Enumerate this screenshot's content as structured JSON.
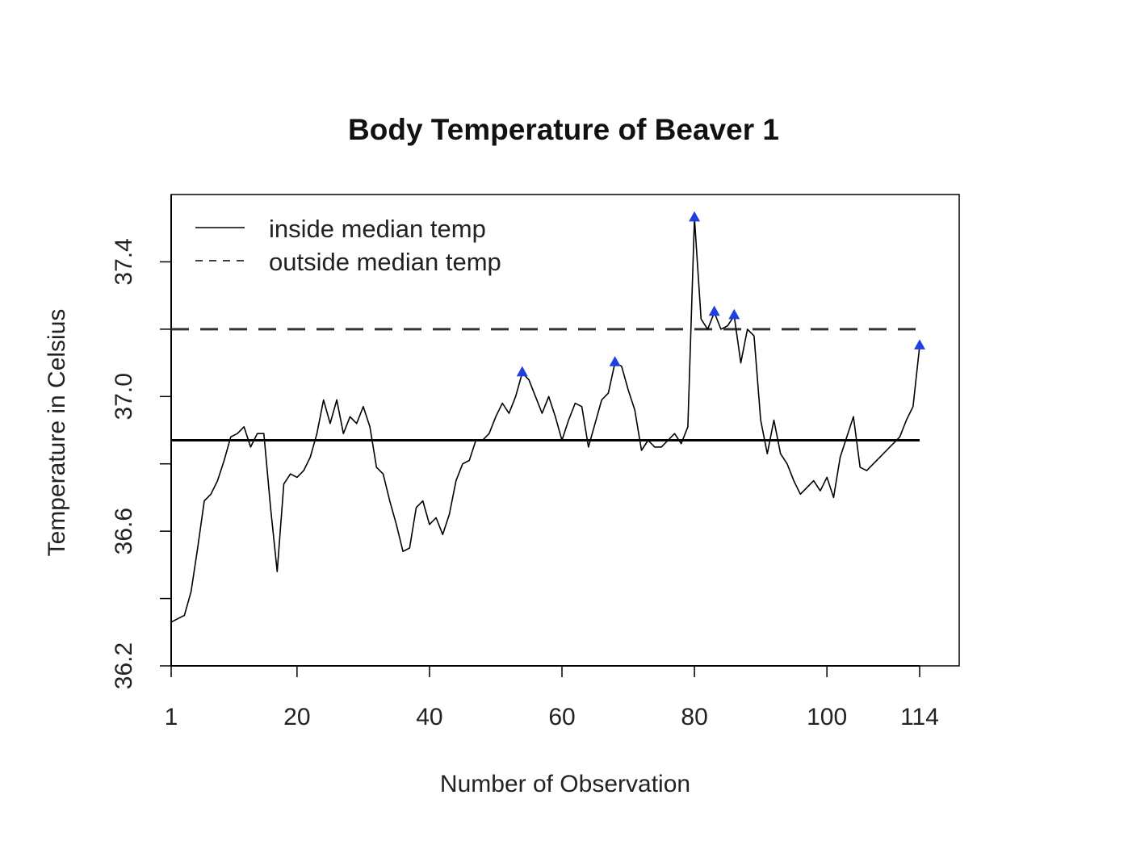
{
  "chart_data": {
    "type": "line",
    "title": "Body Temperature of Beaver 1",
    "xlabel": "Number of Observation",
    "ylabel": "Temperature in Celsius",
    "xlim": [
      1,
      114
    ],
    "ylim": [
      36.2,
      37.6
    ],
    "x_ticks": [
      1,
      20,
      40,
      60,
      80,
      100,
      114
    ],
    "x_tick_labels": [
      "1",
      "20",
      "40",
      "60",
      "80",
      "100",
      "114"
    ],
    "y_ticks": [
      36.2,
      36.4,
      36.6,
      36.8,
      37.0,
      37.2,
      37.4
    ],
    "y_tick_labels": [
      "36.2",
      "",
      "36.6",
      "",
      "37.0",
      "",
      "37.4"
    ],
    "legend": {
      "position": "top-left",
      "entries": [
        {
          "label": "inside median temp",
          "style": "solid"
        },
        {
          "label": "outside median temp",
          "style": "dashed"
        }
      ]
    },
    "series": [
      {
        "style": "solid",
        "color": "#000000",
        "x": [
          1,
          2,
          3,
          4,
          5,
          6,
          7,
          8,
          9,
          10,
          11,
          12,
          13,
          14,
          15,
          16,
          17,
          18,
          19,
          20,
          21,
          22,
          23,
          24,
          25,
          26,
          27,
          28,
          29,
          30,
          31,
          32,
          33,
          34,
          35,
          36,
          37,
          38,
          39,
          40,
          41,
          42,
          43,
          44,
          45,
          46,
          47,
          48,
          49,
          50,
          51,
          52,
          53,
          54,
          55,
          56,
          57,
          58,
          59,
          60,
          61,
          62,
          63,
          64,
          65,
          66,
          67,
          68,
          69,
          70,
          71,
          72,
          73,
          74,
          75,
          76,
          77,
          78,
          79,
          80,
          81,
          82,
          83,
          84,
          85,
          86,
          87,
          88,
          89,
          90,
          91,
          92,
          93,
          94,
          95,
          96,
          97,
          98,
          99,
          100,
          101,
          102,
          103,
          104,
          105,
          106,
          107,
          108,
          109,
          110,
          111,
          112,
          113,
          114
        ],
        "values": [
          36.33,
          36.34,
          36.35,
          36.42,
          36.55,
          36.69,
          36.71,
          36.75,
          36.81,
          36.88,
          36.89,
          36.91,
          36.85,
          36.89,
          36.89,
          36.67,
          36.48,
          36.74,
          36.77,
          36.76,
          36.78,
          36.82,
          36.89,
          36.99,
          36.92,
          36.99,
          36.89,
          36.94,
          36.92,
          36.97,
          36.91,
          36.79,
          36.77,
          36.69,
          36.62,
          36.54,
          36.55,
          36.67,
          36.69,
          36.62,
          36.64,
          36.59,
          36.65,
          36.75,
          36.8,
          36.81,
          36.87,
          36.87,
          36.89,
          36.94,
          36.98,
          36.95,
          37.0,
          37.07,
          37.05,
          37.0,
          36.95,
          37.0,
          36.94,
          36.87,
          36.93,
          36.98,
          36.97,
          36.85,
          36.92,
          36.99,
          37.01,
          37.1,
          37.09,
          37.02,
          36.96,
          36.84,
          36.87,
          36.85,
          36.85,
          36.87,
          36.89,
          36.86,
          36.91,
          37.53,
          37.23,
          37.2,
          37.25,
          37.2,
          37.21,
          37.24,
          37.1,
          37.2,
          37.18,
          36.93,
          36.83,
          36.93,
          36.83,
          36.8,
          36.75,
          36.71,
          36.73,
          36.75,
          36.72,
          36.76,
          36.7,
          36.82,
          36.88,
          36.94,
          36.79,
          36.78,
          36.8,
          36.82,
          36.84,
          36.86,
          36.88,
          36.93,
          36.97,
          37.15
        ]
      }
    ],
    "reference_lines": [
      {
        "style": "solid",
        "y": 36.87,
        "x_range": [
          1,
          114
        ]
      },
      {
        "style": "dashed",
        "y": 37.2,
        "x_range": [
          1,
          114
        ]
      }
    ],
    "highlighted_points": {
      "color": "#1f3fe0",
      "marker": "triangle",
      "points": [
        {
          "x": 54,
          "y": 37.07
        },
        {
          "x": 68,
          "y": 37.1
        },
        {
          "x": 80,
          "y": 37.53
        },
        {
          "x": 83,
          "y": 37.25
        },
        {
          "x": 86,
          "y": 37.24
        },
        {
          "x": 114,
          "y": 37.15
        }
      ]
    }
  }
}
